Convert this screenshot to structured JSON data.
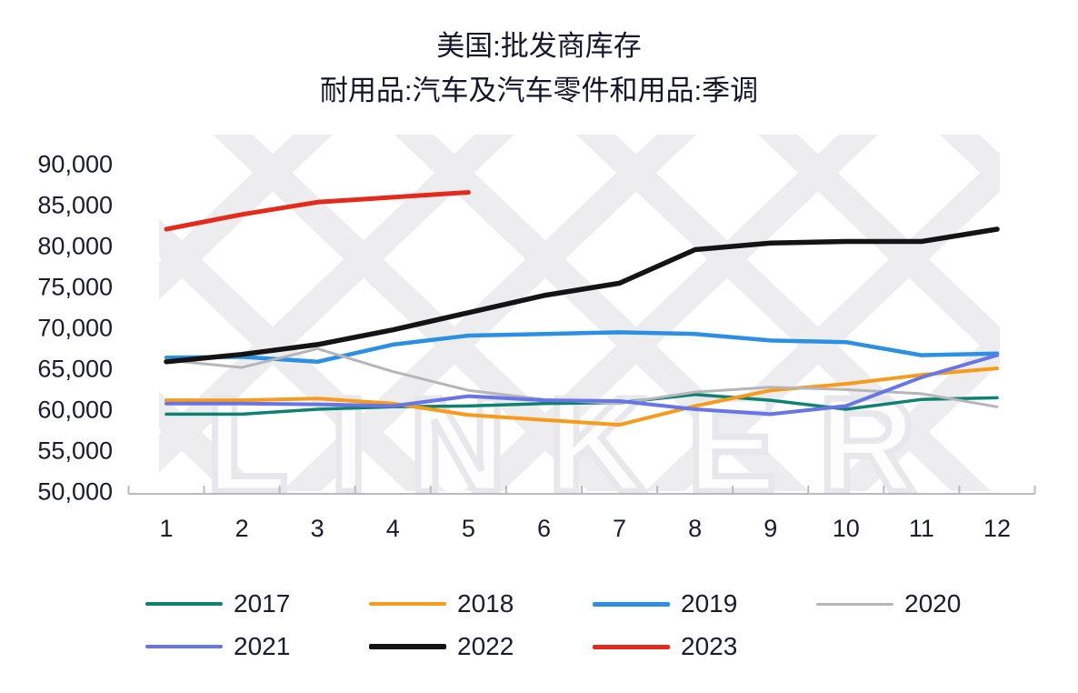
{
  "watermark": "LINKER",
  "colors": {
    "axis": "#b9b9bf",
    "text": "#1b1b30",
    "watermark": "#ededf0"
  },
  "chart_data": {
    "type": "line",
    "title_lines": [
      "美国:批发商库存",
      "耐用品:汽车及汽车零件和用品:季调"
    ],
    "xlabel": "",
    "ylabel": "",
    "x": [
      1,
      2,
      3,
      4,
      5,
      6,
      7,
      8,
      9,
      10,
      11,
      12
    ],
    "y_ticks": [
      90000,
      85000,
      80000,
      75000,
      70000,
      65000,
      60000,
      55000,
      50000
    ],
    "ylim": [
      50000,
      90000
    ],
    "grid": false,
    "legend_position": "bottom",
    "series": [
      {
        "name": "2017",
        "color": "#0f8170",
        "line_width": 3.5,
        "values": [
          59400,
          59400,
          60000,
          60300,
          60400,
          60700,
          60800,
          61800,
          61100,
          60000,
          61200,
          61400
        ]
      },
      {
        "name": "2018",
        "color": "#f89b1c",
        "line_width": 4,
        "values": [
          61100,
          61100,
          61300,
          60700,
          59300,
          58700,
          58100,
          60400,
          62300,
          63100,
          64200,
          65000
        ]
      },
      {
        "name": "2019",
        "color": "#2b8fe3",
        "line_width": 4.5,
        "values": [
          66300,
          66400,
          65800,
          67900,
          69000,
          69200,
          69400,
          69200,
          68400,
          68200,
          66600,
          66800
        ]
      },
      {
        "name": "2020",
        "color": "#b6b6ba",
        "line_width": 3,
        "values": [
          66000,
          65100,
          67400,
          64600,
          62300,
          61200,
          60700,
          62100,
          62700,
          62400,
          61900,
          60300
        ]
      },
      {
        "name": "2021",
        "color": "#6775e6",
        "line_width": 4,
        "values": [
          60700,
          60700,
          60600,
          60400,
          61600,
          61100,
          61000,
          60000,
          59400,
          60400,
          63900,
          66600
        ]
      },
      {
        "name": "2022",
        "color": "#141414",
        "line_width": 5.5,
        "values": [
          65800,
          66700,
          67900,
          69700,
          71800,
          73900,
          75400,
          79500,
          80300,
          80500,
          80500,
          82000
        ]
      },
      {
        "name": "2023",
        "color": "#e42a1a",
        "line_width": 5,
        "values": [
          82000,
          83800,
          85300,
          85900,
          86500
        ]
      }
    ]
  }
}
